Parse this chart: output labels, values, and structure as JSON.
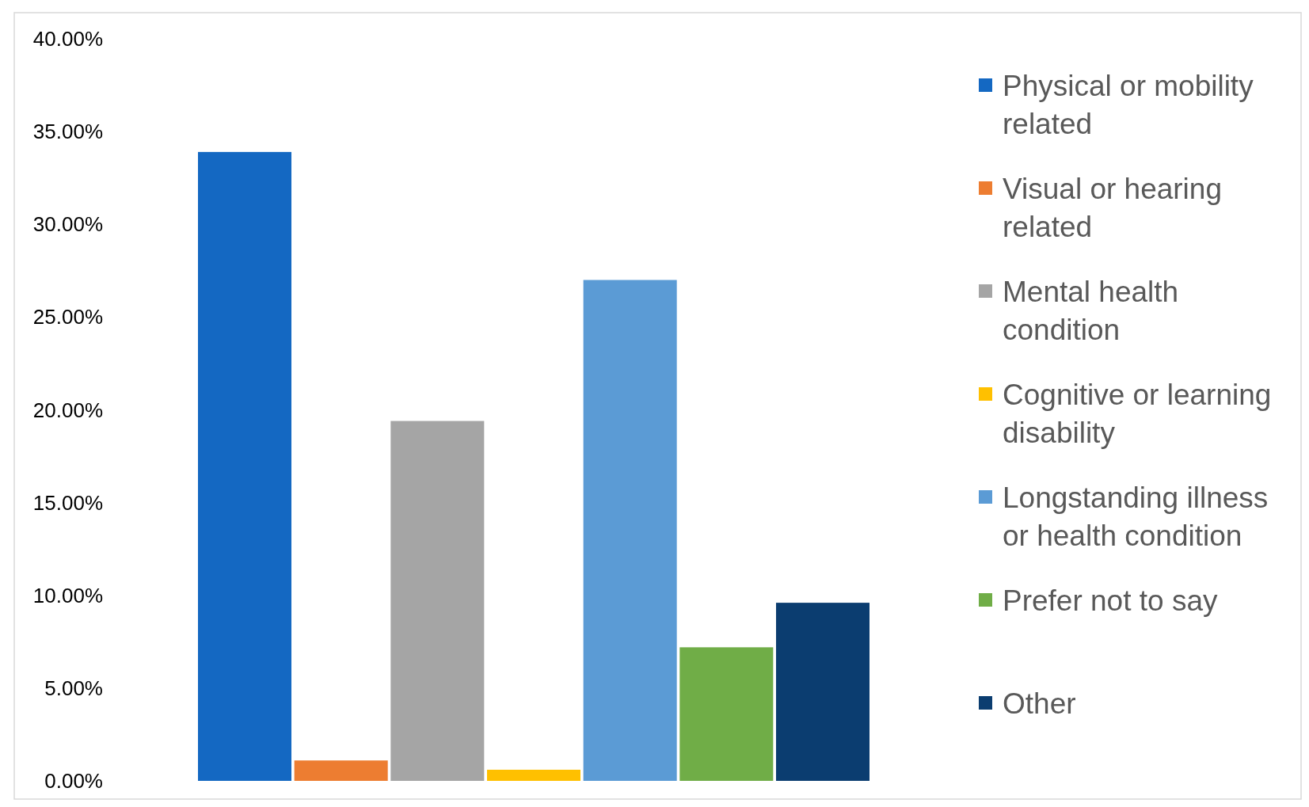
{
  "chart_data": {
    "type": "bar",
    "categories": [
      null
    ],
    "series": [
      {
        "name": "Physical or mobility related",
        "color": "#1468c2",
        "values": [
          33.9
        ]
      },
      {
        "name": "Visual or hearing related",
        "color": "#ed7d31",
        "values": [
          1.1
        ]
      },
      {
        "name": "Mental health condition",
        "color": "#a5a5a5",
        "values": [
          19.4
        ]
      },
      {
        "name": "Cognitive or learning disability",
        "color": "#ffc000",
        "values": [
          0.6
        ]
      },
      {
        "name": "Longstanding illness or health condition",
        "color": "#5b9bd5",
        "values": [
          27.0
        ]
      },
      {
        "name": "Prefer not to say",
        "color": "#70ad47",
        "values": [
          7.2
        ]
      },
      {
        "name": "Other",
        "color": "#0b3d70",
        "values": [
          9.6
        ]
      }
    ],
    "ylim": [
      0,
      40
    ],
    "yticks": [
      {
        "value": 0,
        "label": "0.00%"
      },
      {
        "value": 5,
        "label": "5.00%"
      },
      {
        "value": 10,
        "label": "10.00%"
      },
      {
        "value": 15,
        "label": "15.00%"
      },
      {
        "value": 20,
        "label": "20.00%"
      },
      {
        "value": 25,
        "label": "25.00%"
      },
      {
        "value": 30,
        "label": "30.00%"
      },
      {
        "value": 35,
        "label": "35.00%"
      },
      {
        "value": 40,
        "label": "40.00%"
      }
    ],
    "grid": false,
    "legend": "right"
  }
}
